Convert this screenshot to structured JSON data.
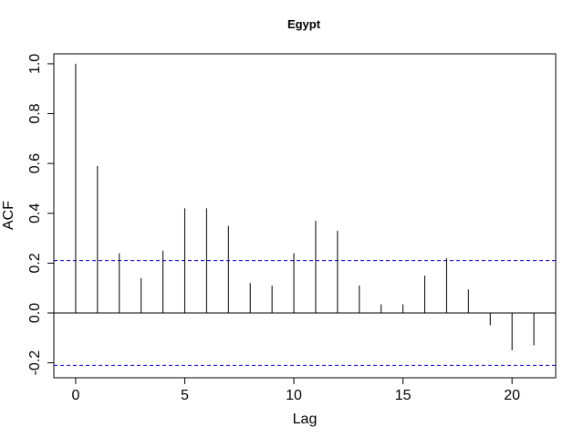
{
  "chart_data": {
    "type": "bar",
    "title": "Egypt",
    "xlabel": "Lag",
    "ylabel": "ACF",
    "x": [
      0,
      1,
      2,
      3,
      4,
      5,
      6,
      7,
      8,
      9,
      10,
      11,
      12,
      13,
      14,
      15,
      16,
      17,
      18,
      19,
      20,
      21
    ],
    "values": [
      1.0,
      0.59,
      0.24,
      0.14,
      0.25,
      0.42,
      0.42,
      0.35,
      0.12,
      0.11,
      0.24,
      0.37,
      0.33,
      0.11,
      0.035,
      0.035,
      0.15,
      0.22,
      0.095,
      -0.05,
      -0.15,
      -0.13
    ],
    "confidence_bounds": [
      0.21,
      -0.21
    ],
    "xlim": [
      -1,
      22
    ],
    "ylim": [
      -0.26,
      1.04
    ],
    "xticks": [
      0,
      5,
      10,
      15,
      20
    ],
    "xtick_labels": [
      "0",
      "5",
      "10",
      "15",
      "20"
    ],
    "yticks": [
      -0.2,
      0.0,
      0.2,
      0.4,
      0.6,
      0.8,
      1.0
    ],
    "ytick_labels": [
      "-0.2",
      "0.0",
      "0.2",
      "0.4",
      "0.6",
      "0.8",
      "1.0"
    ],
    "grid": false,
    "colors": {
      "bars": "#000000",
      "confidence_lines": "#0000cc",
      "zero_line": "#000000",
      "frame": "#000000"
    }
  }
}
